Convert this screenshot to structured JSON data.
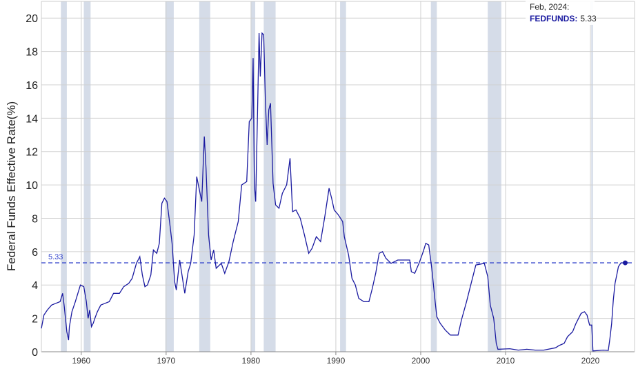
{
  "chart_data": {
    "type": "line",
    "y_label": "Federal Funds Effective Rate(%)",
    "x": [
      1955.3,
      1955.6,
      1956,
      1956.5,
      1957,
      1957.5,
      1957.8,
      1958.0,
      1958.3,
      1958.5,
      1958.6,
      1958.9,
      1959.3,
      1959.6,
      1959.9,
      1960.3,
      1960.6,
      1960.8,
      1961.0,
      1961.2,
      1961.4,
      1961.6,
      1961.9,
      1962.3,
      1962.8,
      1963.3,
      1963.8,
      1964.5,
      1965,
      1965.6,
      1966,
      1966.5,
      1966.9,
      1967.2,
      1967.5,
      1967.8,
      1968.2,
      1968.5,
      1968.9,
      1969.2,
      1969.5,
      1969.8,
      1970.1,
      1970.4,
      1970.7,
      1971.0,
      1971.2,
      1971.6,
      1971.9,
      1972.2,
      1972.6,
      1972.9,
      1973.3,
      1973.6,
      1973.8,
      1974.2,
      1974.5,
      1974.7,
      1975.0,
      1975.3,
      1975.6,
      1975.9,
      1976.5,
      1976.9,
      1977.4,
      1977.9,
      1978.5,
      1978.9,
      1979.5,
      1979.8,
      1980.1,
      1980.25,
      1980.4,
      1980.55,
      1980.8,
      1980.95,
      1981.1,
      1981.3,
      1981.5,
      1981.7,
      1981.9,
      1982.1,
      1982.3,
      1982.6,
      1982.9,
      1983.3,
      1983.7,
      1984.2,
      1984.6,
      1984.9,
      1985.3,
      1985.8,
      1986.3,
      1986.8,
      1987.2,
      1987.7,
      1988.2,
      1988.7,
      1989.2,
      1989.5,
      1989.8,
      1990.3,
      1990.8,
      1991.0,
      1991.5,
      1991.9,
      1992.3,
      1992.7,
      1993.3,
      1993.9,
      1994.3,
      1994.7,
      1995.1,
      1995.5,
      1995.9,
      1996.5,
      1997.3,
      1998.0,
      1998.7,
      1998.9,
      1999.3,
      1999.8,
      2000.3,
      2000.6,
      2000.95,
      2001.3,
      2001.7,
      2001.9,
      2002.3,
      2002.9,
      2003.5,
      2004.4,
      2004.8,
      2005.4,
      2005.9,
      2006.5,
      2007.5,
      2007.9,
      2008.2,
      2008.6,
      2008.9,
      2009.1,
      2010.5,
      2011.5,
      2012.5,
      2013.5,
      2014.5,
      2015.9,
      2016.3,
      2016.9,
      2017.3,
      2017.9,
      2018.3,
      2018.9,
      2019.3,
      2019.6,
      2019.9,
      2020.15,
      2020.3,
      2021.5,
      2022.1,
      2022.3,
      2022.5,
      2022.7,
      2022.9,
      2023.1,
      2023.3,
      2023.6,
      2024.1
    ],
    "values": [
      1.4,
      2.2,
      2.5,
      2.8,
      2.9,
      3.0,
      3.5,
      2.7,
      1.2,
      0.7,
      1.5,
      2.4,
      3.0,
      3.5,
      4.0,
      3.9,
      3.0,
      2.0,
      2.5,
      1.5,
      1.7,
      2.0,
      2.4,
      2.8,
      2.9,
      3.0,
      3.5,
      3.5,
      3.9,
      4.1,
      4.4,
      5.3,
      5.7,
      4.6,
      3.9,
      4.0,
      4.6,
      6.1,
      5.9,
      6.5,
      8.9,
      9.2,
      9.0,
      7.8,
      6.5,
      4.2,
      3.7,
      5.5,
      4.5,
      3.5,
      4.8,
      5.3,
      7.0,
      10.5,
      10.0,
      9.0,
      12.9,
      11.0,
      7.0,
      5.5,
      6.1,
      5.0,
      5.3,
      4.7,
      5.4,
      6.6,
      7.8,
      10.0,
      10.2,
      13.8,
      14.0,
      17.6,
      10.0,
      9.0,
      15.0,
      19.1,
      16.5,
      19.1,
      19.0,
      15.0,
      12.4,
      14.5,
      14.9,
      10.1,
      8.8,
      8.6,
      9.5,
      10.0,
      11.6,
      8.4,
      8.5,
      8.0,
      7.0,
      5.9,
      6.2,
      6.9,
      6.6,
      8.1,
      9.8,
      9.2,
      8.5,
      8.2,
      7.8,
      6.9,
      5.8,
      4.4,
      4.0,
      3.2,
      3.0,
      3.0,
      3.8,
      4.7,
      5.9,
      6.0,
      5.6,
      5.3,
      5.5,
      5.5,
      5.5,
      4.8,
      4.7,
      5.3,
      6.0,
      6.5,
      6.4,
      5.0,
      3.0,
      2.1,
      1.7,
      1.3,
      1.0,
      1.0,
      1.9,
      3.0,
      4.0,
      5.2,
      5.3,
      4.5,
      2.8,
      2.0,
      0.5,
      0.15,
      0.18,
      0.1,
      0.15,
      0.1,
      0.1,
      0.24,
      0.37,
      0.5,
      0.9,
      1.2,
      1.7,
      2.3,
      2.4,
      2.2,
      1.6,
      1.6,
      0.05,
      0.1,
      0.08,
      0.8,
      1.7,
      3.1,
      4.1,
      4.6,
      5.1,
      5.33,
      5.33
    ],
    "color": "#1a1aa0",
    "recessions": [
      [
        1957.6,
        1958.3
      ],
      [
        1960.3,
        1961.1
      ],
      [
        1969.9,
        1970.9
      ],
      [
        1973.9,
        1975.2
      ],
      [
        1980.0,
        1980.5
      ],
      [
        1981.5,
        1982.9
      ],
      [
        1990.5,
        1991.2
      ],
      [
        2001.2,
        2001.9
      ],
      [
        2007.9,
        2009.5
      ],
      [
        2020.1,
        2020.3
      ]
    ],
    "xlim": [
      1955.3,
      2025.2
    ],
    "ylim": [
      0,
      21
    ],
    "xticks": [
      1960,
      1970,
      1980,
      1990,
      2000,
      2010,
      2020
    ],
    "yticks": [
      0,
      2,
      4,
      6,
      8,
      10,
      12,
      14,
      16,
      18,
      20
    ],
    "grid": true,
    "reference_line": 5.33,
    "tooltip_date": "Feb, 2024:",
    "tooltip_series": "FEDFUNDS:"
  }
}
